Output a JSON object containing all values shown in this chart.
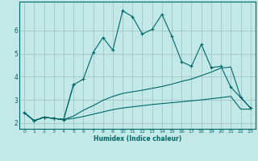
{
  "xlabel": "Humidex (Indice chaleur)",
  "background_color": "#c2e8e8",
  "grid_color": "#9dbebe",
  "line_color": "#006868",
  "x_values": [
    0,
    1,
    2,
    3,
    4,
    5,
    6,
    7,
    8,
    9,
    10,
    11,
    12,
    13,
    14,
    15,
    16,
    17,
    18,
    19,
    20,
    21,
    22,
    23
  ],
  "series_main": [
    2.45,
    2.1,
    2.25,
    2.2,
    2.15,
    3.65,
    3.9,
    5.05,
    5.7,
    5.15,
    6.85,
    6.6,
    5.85,
    6.05,
    6.7,
    5.75,
    4.65,
    4.45,
    5.4,
    4.4,
    4.45,
    3.55,
    3.1,
    2.65
  ],
  "series_upper": [
    2.45,
    2.1,
    2.25,
    2.2,
    2.15,
    2.3,
    2.55,
    2.75,
    2.98,
    3.15,
    3.28,
    3.35,
    3.42,
    3.5,
    3.58,
    3.68,
    3.8,
    3.9,
    4.05,
    4.2,
    4.38,
    4.42,
    3.12,
    2.65
  ],
  "series_lower": [
    2.45,
    2.1,
    2.25,
    2.2,
    2.15,
    2.2,
    2.28,
    2.38,
    2.48,
    2.58,
    2.65,
    2.7,
    2.75,
    2.8,
    2.84,
    2.88,
    2.92,
    2.96,
    3.0,
    3.05,
    3.1,
    3.15,
    2.6,
    2.6
  ],
  "series_short": [
    2.45,
    2.1,
    2.25,
    2.2,
    2.15,
    3.65
  ],
  "x_short": [
    0,
    1,
    2,
    3,
    4,
    5
  ],
  "ylim": [
    1.75,
    7.25
  ],
  "xlim": [
    -0.5,
    23.5
  ],
  "yticks": [
    2,
    3,
    4,
    5,
    6
  ],
  "xticks": [
    0,
    1,
    2,
    3,
    4,
    5,
    6,
    7,
    8,
    9,
    10,
    11,
    12,
    13,
    14,
    15,
    16,
    17,
    18,
    19,
    20,
    21,
    22,
    23
  ]
}
